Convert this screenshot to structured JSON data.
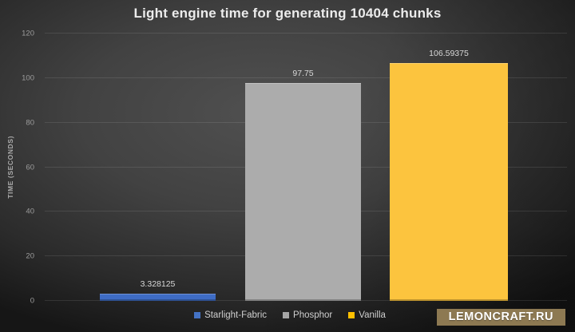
{
  "chart_data": {
    "type": "bar",
    "title": "Light engine time for generating 10404 chunks",
    "xlabel": "",
    "ylabel": "TIME (SECONDS)",
    "categories": [
      "Starlight-Fabric",
      "Phosphor",
      "Vanilla"
    ],
    "values": [
      3.328125,
      97.75,
      106.59375
    ],
    "value_labels": [
      "3.328125",
      "97.75",
      "106.59375"
    ],
    "bar_colors": [
      "#3e6cc5",
      "#acacac",
      "#fcc43e"
    ],
    "ylim": [
      0,
      120
    ],
    "yticks": [
      0,
      20,
      40,
      60,
      80,
      100,
      120
    ],
    "grid": true,
    "legend_position": "bottom",
    "legend": [
      {
        "label": "Starlight-Fabric",
        "color": "#4472c4"
      },
      {
        "label": "Phosphor",
        "color": "#a6a6a6"
      },
      {
        "label": "Vanilla",
        "color": "#ffc000"
      }
    ]
  },
  "watermark": {
    "label": "LEMONCRAFT.RU",
    "bg_color": "#8d7952",
    "text_color": "#ffffff"
  }
}
